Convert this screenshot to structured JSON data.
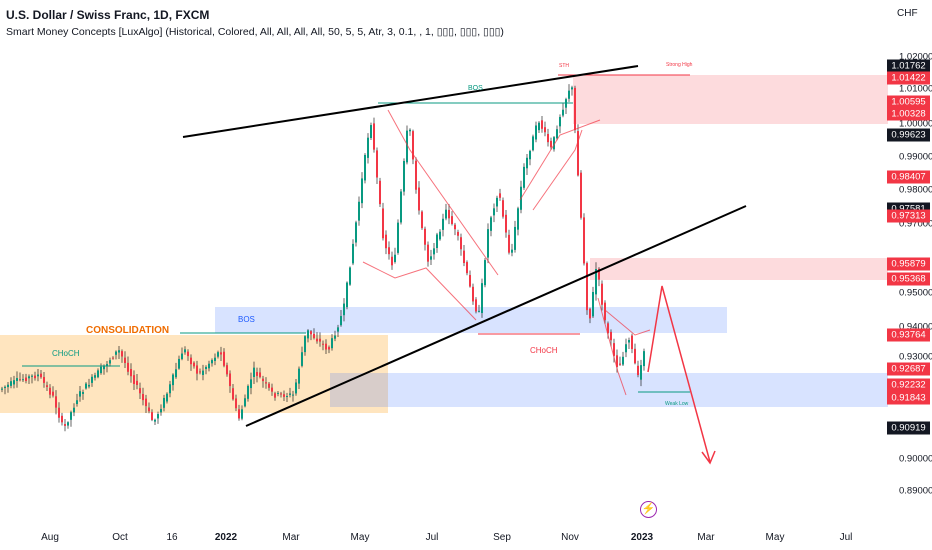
{
  "header": {
    "title": "U.S. Dollar / Swiss Franc, 1D, FXCM",
    "indicator": "Smart Money Concepts [LuxAlgo] (Historical, Colored, All, All, All, All, 50, 5, 5, Atr, 3, 0.1, , 1, ▯▯▯, ▯▯▯, ▯▯▯)",
    "currency": "CHF"
  },
  "icons": {
    "lightning": "lightning-icon"
  },
  "colors": {
    "bull": "#089981",
    "bear": "#f23645",
    "consolidation": "#ff9800",
    "demand_zone": "#2962ff",
    "supply_zone": "#f23645",
    "trendline": "#000000"
  },
  "chart_data": {
    "type": "candlestick",
    "symbol": "USDCHF",
    "timeframe": "1D",
    "x_axis": {
      "labels": [
        "Aug",
        "Oct",
        "16",
        "2022",
        "Mar",
        "May",
        "Jul",
        "Sep",
        "Nov",
        "2023",
        "Mar",
        "May",
        "Jul"
      ],
      "bold_labels": [
        "2022",
        "2023"
      ]
    },
    "y_axis": {
      "range": [
        0.885,
        1.025
      ],
      "ticks": [
        "1.02000",
        "1.01000",
        "1.00000",
        "0.99000",
        "0.98000",
        "0.97000",
        "0.95000",
        "0.94000",
        "0.93000",
        "0.90000",
        "0.89000"
      ]
    },
    "price_labels": [
      {
        "value": "1.01762",
        "style": "black"
      },
      {
        "value": "1.01422",
        "style": "red"
      },
      {
        "value": "1.00595",
        "style": "red"
      },
      {
        "value": "1.00328",
        "style": "red"
      },
      {
        "value": "0.99623",
        "style": "black"
      },
      {
        "value": "0.98407",
        "style": "red"
      },
      {
        "value": "0.97581",
        "style": "black"
      },
      {
        "value": "0.97313",
        "style": "red"
      },
      {
        "value": "0.95879",
        "style": "red"
      },
      {
        "value": "0.95368",
        "style": "red"
      },
      {
        "value": "0.93764",
        "style": "red"
      },
      {
        "value": "0.92687",
        "style": "red"
      },
      {
        "value": "0.92232",
        "style": "red"
      },
      {
        "value": "0.91843",
        "style": "red"
      },
      {
        "value": "0.90919",
        "style": "black"
      }
    ],
    "annotations": {
      "consolidation": "CONSOLIDATION",
      "bos_zone": "BOS",
      "choch_lower": "CHoCH",
      "choch_left": "CHoCH",
      "bos_top": "BOS",
      "strong_high": "Strong High",
      "weak_low": "Weak Low",
      "sth": "STH"
    },
    "zones": [
      {
        "kind": "consolidation",
        "y": [
          0.9185,
          0.9375
        ]
      },
      {
        "kind": "demand",
        "y": [
          0.9375,
          0.9455
        ]
      },
      {
        "kind": "demand",
        "y": [
          0.9175,
          0.9265
        ]
      },
      {
        "kind": "supply",
        "y": [
          1.0033,
          1.0142
        ]
      },
      {
        "kind": "supply",
        "y": [
          0.9537,
          0.9588
        ]
      }
    ],
    "forecast_path": [
      0.9237,
      0.9525,
      0.9
    ]
  }
}
